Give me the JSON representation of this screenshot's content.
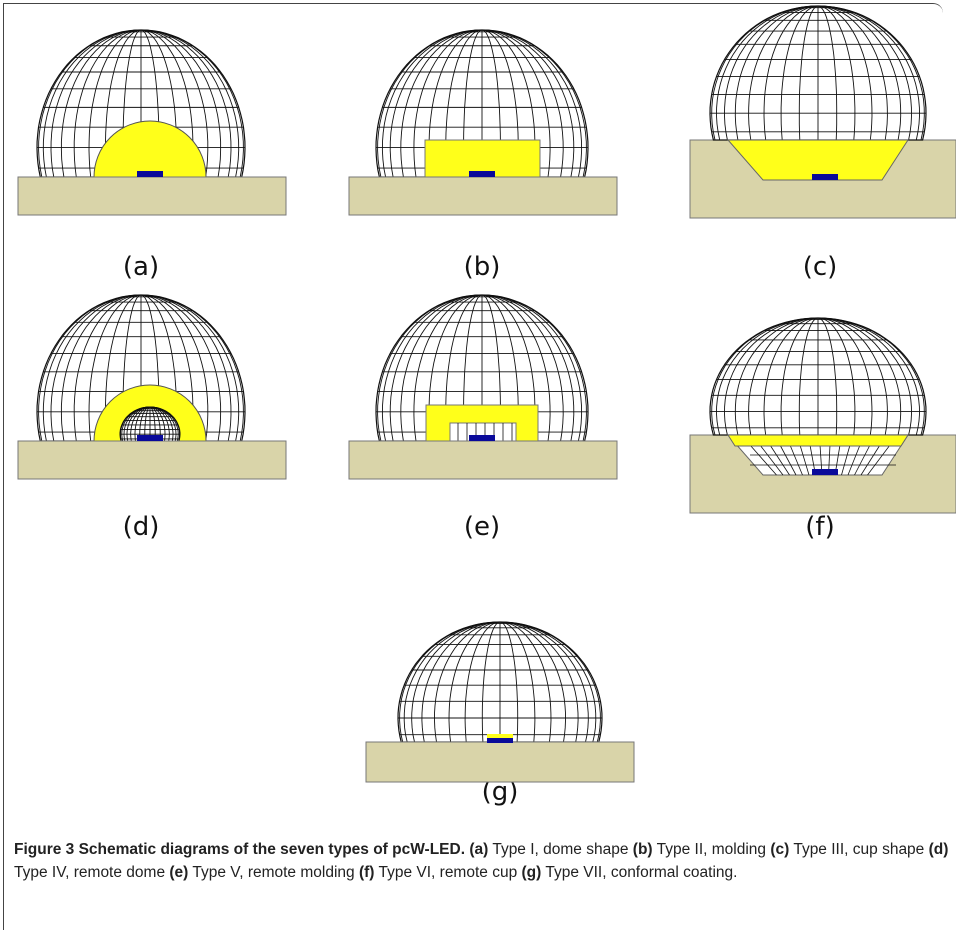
{
  "figure": {
    "panels": [
      "(a)",
      "(b)",
      "(c)",
      "(d)",
      "(e)",
      "(f)",
      "(g)"
    ],
    "caption": {
      "title": "Figure 3 Schematic diagrams of the seven types of pcW-LED.",
      "items": [
        {
          "label": "(a)",
          "text": "Type I, dome shape"
        },
        {
          "label": "(b)",
          "text": "Type II, molding"
        },
        {
          "label": "(c)",
          "text": "Type III, cup shape"
        },
        {
          "label": "(d)",
          "text": "Type IV, remote dome"
        },
        {
          "label": "(e)",
          "text": "Type V, remote molding"
        },
        {
          "label": "(f)",
          "text": "Type VI, remote cup"
        },
        {
          "label": "(g)",
          "text": "Type VII, conformal coating."
        }
      ]
    }
  }
}
